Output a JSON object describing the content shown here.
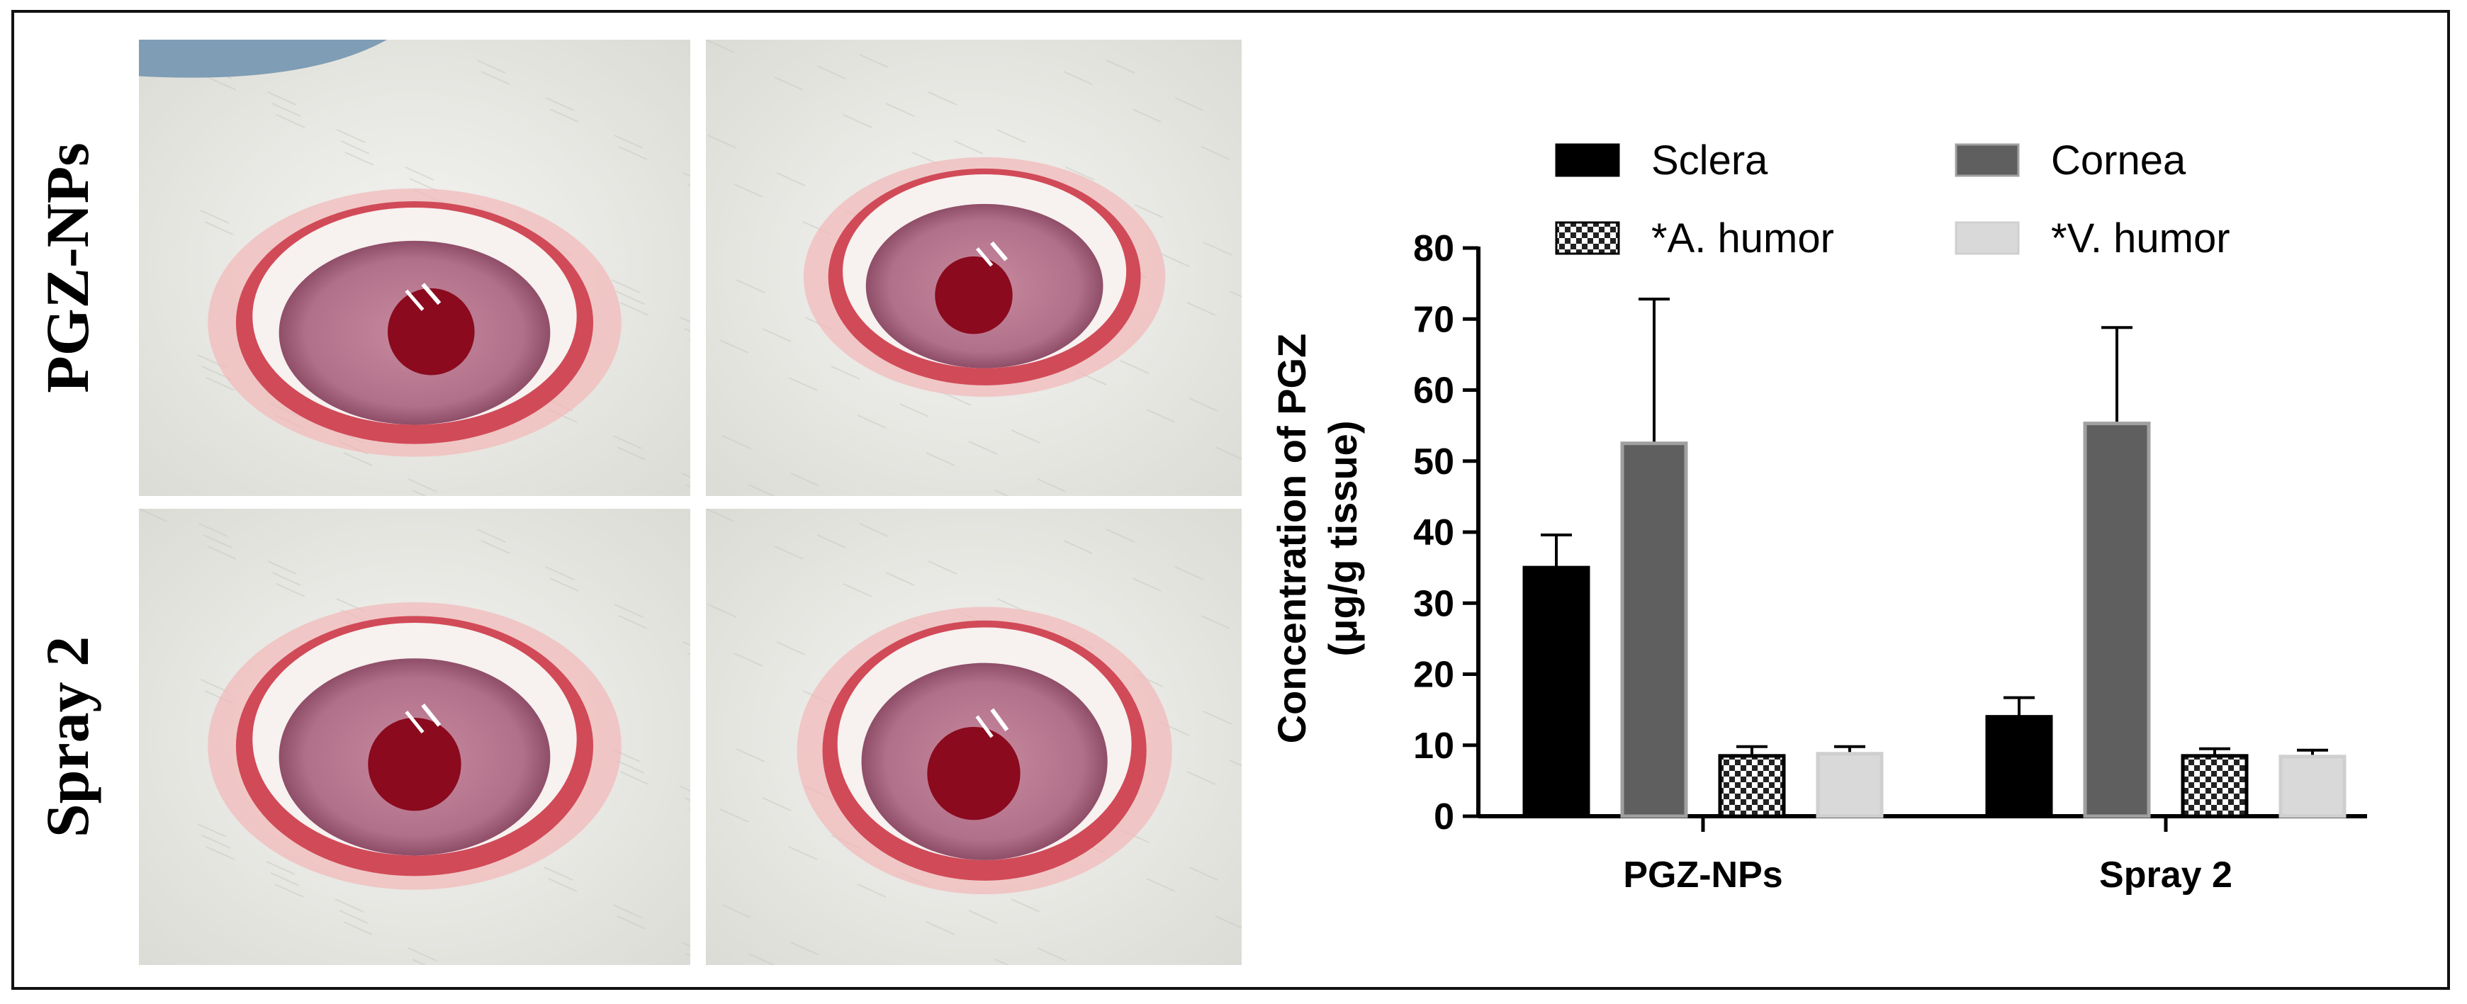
{
  "panels": {
    "row_labels": [
      "PGZ-NPs",
      "Spray 2"
    ],
    "photo_description_icons": [
      "rabbit-eye-photo",
      "rabbit-eye-photo",
      "rabbit-eye-photo",
      "rabbit-eye-photo"
    ]
  },
  "chart_data": {
    "type": "bar",
    "categories": [
      "PGZ-NPs",
      "Spray 2"
    ],
    "series": [
      {
        "name": "Sclera",
        "values": [
          35.0,
          14.0
        ],
        "errors": [
          4.6,
          2.7
        ],
        "color": "#000000",
        "pattern": "solid"
      },
      {
        "name": "Cornea",
        "values": [
          52.5,
          55.3
        ],
        "errors": [
          20.3,
          13.5
        ],
        "color": "#5f5f5f",
        "pattern": "solid"
      },
      {
        "name": "*A. humor",
        "values": [
          8.5,
          8.5
        ],
        "errors": [
          1.3,
          1.0
        ],
        "color": "#2a2a2a",
        "pattern": "checker"
      },
      {
        "name": "*V. humor",
        "values": [
          8.8,
          8.4
        ],
        "errors": [
          1.0,
          0.9
        ],
        "color": "#d9d9d9",
        "pattern": "solid"
      }
    ],
    "ylabel_line1": "Concentration of PGZ",
    "ylabel_line2": "(μg/g tissue)",
    "ylim": [
      0,
      80
    ],
    "yticks": [
      "0",
      "10",
      "20",
      "30",
      "40",
      "50",
      "60",
      "70",
      "80"
    ],
    "legend_position": "top"
  }
}
